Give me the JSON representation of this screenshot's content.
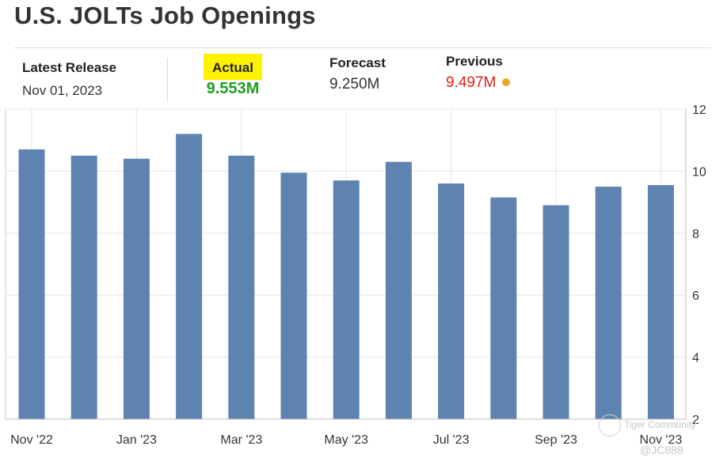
{
  "header": {
    "title": "U.S. JOLTs Job Openings"
  },
  "stats": {
    "latest_release": {
      "label": "Latest Release",
      "value": "Nov 01, 2023"
    },
    "actual": {
      "label": "Actual",
      "value": "9.553M",
      "highlight_color": "#fff200",
      "value_color": "#1f9e1f"
    },
    "forecast": {
      "label": "Forecast",
      "value": "9.250M"
    },
    "previous": {
      "label": "Previous",
      "value": "9.497M",
      "value_color": "#e0201c",
      "dot_color": "#e8a82a"
    }
  },
  "watermark": {
    "brand": "Tiger Community",
    "user": "@JC888"
  },
  "chart_data": {
    "type": "bar",
    "categories": [
      "Nov '22",
      "Dec '22",
      "Jan '23",
      "Feb '23",
      "Mar '23",
      "Apr '23",
      "May '23",
      "Jun '23",
      "Jul '23",
      "Aug '23",
      "Sep '23",
      "Oct '23",
      "Nov '23"
    ],
    "values": [
      10.7,
      10.5,
      10.4,
      11.2,
      10.5,
      9.95,
      9.7,
      10.3,
      9.6,
      9.15,
      8.9,
      9.5,
      9.55
    ],
    "x_tick_labels": [
      "Nov '22",
      "Jan '23",
      "Mar '23",
      "May '23",
      "Jul '23",
      "Sep '23",
      "Nov '23"
    ],
    "ylim": [
      2,
      12
    ],
    "y_ticks": [
      2,
      4,
      6,
      8,
      10,
      12
    ],
    "y_axis_side": "right",
    "grid": true,
    "bar_color": "#5e83b0",
    "title": "",
    "xlabel": "",
    "ylabel": ""
  }
}
